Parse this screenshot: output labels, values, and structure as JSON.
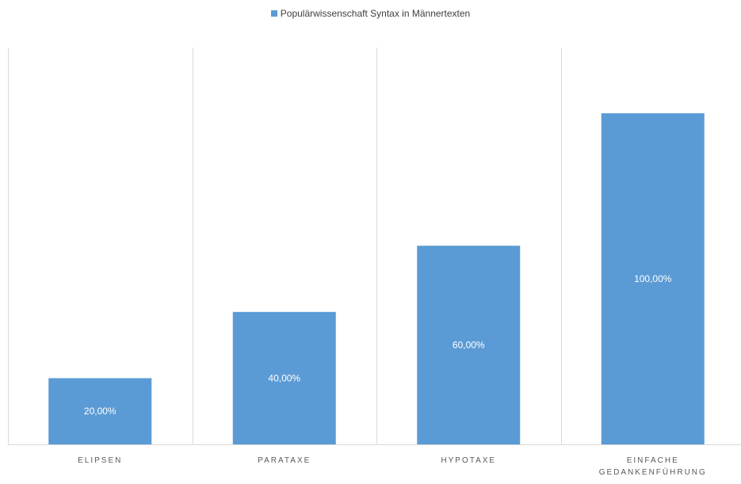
{
  "chart_data": {
    "type": "bar",
    "categories": [
      "ELIPSEN",
      "PARATAXE",
      "HYPOTAXE",
      "EINFACHE GEDANKENFÜHRUNG"
    ],
    "category_lines": [
      [
        "ELIPSEN"
      ],
      [
        "PARATAXE"
      ],
      [
        "HYPOTAXE"
      ],
      [
        "EINFACHE",
        "GEDANKENFÜHRUNG"
      ]
    ],
    "series": [
      {
        "name": "Populärwissenschaft Syntax in Männertexten",
        "values": [
          20,
          40,
          60,
          100
        ],
        "labels": [
          "20,00%",
          "40,00%",
          "60,00%",
          "100,00%"
        ],
        "color": "#5B9BD5"
      }
    ],
    "ylim": [
      0,
      100
    ],
    "legend_position": "top-center",
    "grid": "vertical-category-dividers",
    "gridline_color": "#d9d9d9",
    "axis_label_color": "#595959",
    "data_label_color": "#ffffff"
  }
}
